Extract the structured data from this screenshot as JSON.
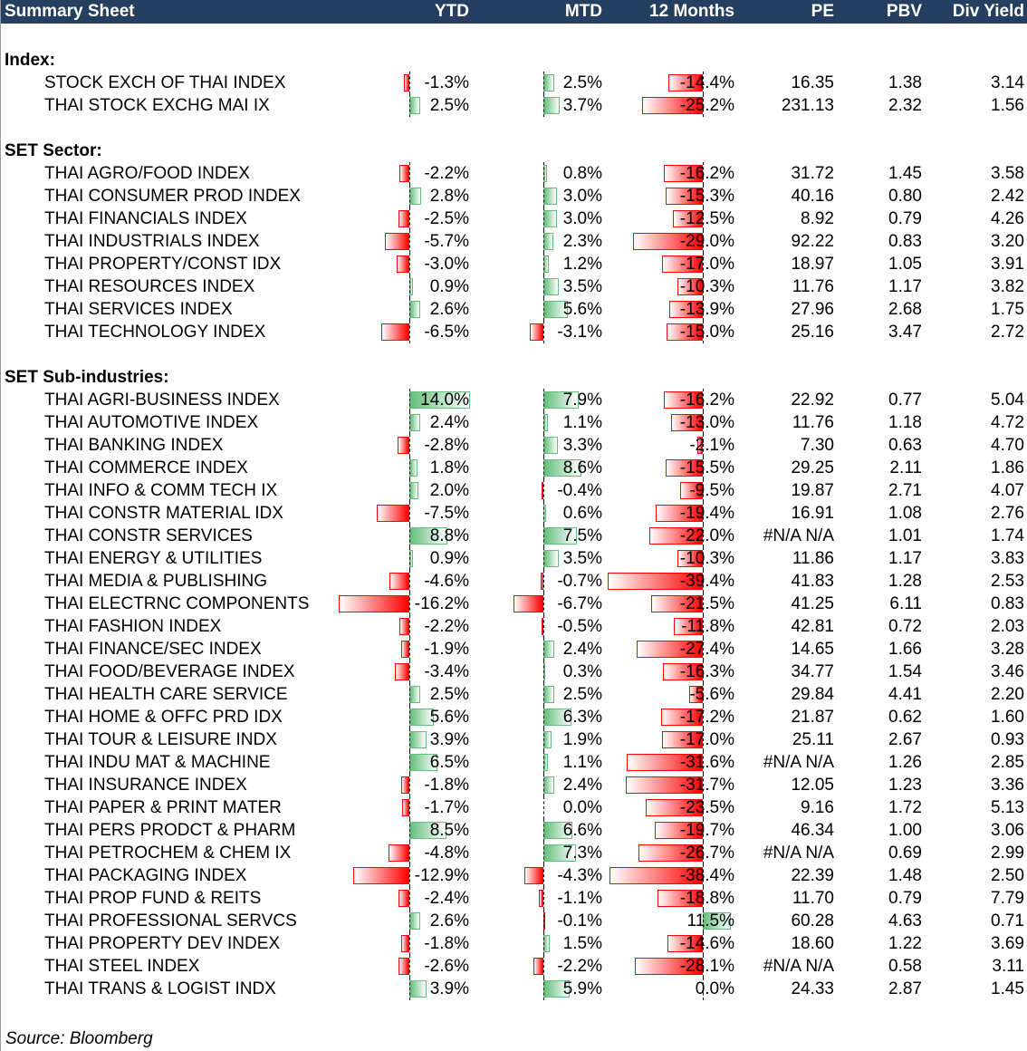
{
  "header": {
    "title": "Summary Sheet",
    "cols": [
      "YTD",
      "MTD",
      "12 Months",
      "PE",
      "PBV",
      "Div Yield"
    ]
  },
  "colors": {
    "header_bg": "#243f60",
    "neg": "#ff0000",
    "pos": "#63be7b"
  },
  "sections": [
    {
      "title": "Index:",
      "rows": [
        [
          "STOCK EXCH OF THAI INDEX",
          -1.3,
          2.5,
          -14.4,
          "16.35",
          "1.38",
          "3.14"
        ],
        [
          "THAI STOCK EXCHG MAI IX",
          2.5,
          3.7,
          -25.2,
          "231.13",
          "2.32",
          "1.56"
        ]
      ]
    },
    {
      "title": "SET Sector:",
      "rows": [
        [
          "THAI AGRO/FOOD INDEX",
          -2.2,
          0.8,
          -16.2,
          "31.72",
          "1.45",
          "3.58"
        ],
        [
          "THAI CONSUMER PROD INDEX",
          2.8,
          3.0,
          -15.3,
          "40.16",
          "0.80",
          "2.42"
        ],
        [
          "THAI FINANCIALS INDEX",
          -2.5,
          3.0,
          -12.5,
          "8.92",
          "0.79",
          "4.26"
        ],
        [
          "THAI INDUSTRIALS INDEX",
          -5.7,
          2.3,
          -29.0,
          "92.22",
          "0.83",
          "3.20"
        ],
        [
          "THAI PROPERTY/CONST IDX",
          -3.0,
          1.2,
          -17.0,
          "18.97",
          "1.05",
          "3.91"
        ],
        [
          "THAI RESOURCES INDEX",
          0.9,
          3.5,
          -10.3,
          "11.76",
          "1.17",
          "3.82"
        ],
        [
          "THAI SERVICES INDEX",
          2.6,
          5.6,
          -13.9,
          "27.96",
          "2.68",
          "1.75"
        ],
        [
          "THAI TECHNOLOGY INDEX",
          -6.5,
          -3.1,
          -15.0,
          "25.16",
          "3.47",
          "2.72"
        ]
      ]
    },
    {
      "title": "SET Sub-industries:",
      "rows": [
        [
          "THAI AGRI-BUSINESS INDEX",
          14.0,
          7.9,
          -16.2,
          "22.92",
          "0.77",
          "5.04"
        ],
        [
          "THAI AUTOMOTIVE INDEX",
          2.4,
          1.1,
          -13.0,
          "11.76",
          "1.18",
          "4.72"
        ],
        [
          "THAI BANKING INDEX",
          -2.8,
          3.3,
          -2.1,
          "7.30",
          "0.63",
          "4.70"
        ],
        [
          "THAI COMMERCE INDEX",
          1.8,
          8.6,
          -15.5,
          "29.25",
          "2.11",
          "1.86"
        ],
        [
          "THAI INFO & COMM TECH IX",
          2.0,
          -0.4,
          -9.5,
          "19.87",
          "2.71",
          "4.07"
        ],
        [
          "THAI CONSTR MATERIAL IDX",
          -7.5,
          0.6,
          -19.4,
          "16.91",
          "1.08",
          "2.76"
        ],
        [
          "THAI CONSTR SERVICES",
          8.8,
          7.5,
          -22.0,
          "#N/A N/A",
          "1.01",
          "1.74"
        ],
        [
          "THAI ENERGY & UTILITIES",
          0.9,
          3.5,
          -10.3,
          "11.86",
          "1.17",
          "3.83"
        ],
        [
          "THAI MEDIA & PUBLISHING",
          -4.6,
          -0.7,
          -39.4,
          "41.83",
          "1.28",
          "2.53"
        ],
        [
          "THAI ELECTRNC COMPONENTS",
          -16.2,
          -6.7,
          -21.5,
          "41.25",
          "6.11",
          "0.83"
        ],
        [
          "THAI FASHION INDEX",
          -2.2,
          -0.5,
          -11.8,
          "42.81",
          "0.72",
          "2.03"
        ],
        [
          "THAI FINANCE/SEC INDEX",
          -1.9,
          2.4,
          -27.4,
          "14.65",
          "1.66",
          "3.28"
        ],
        [
          "THAI FOOD/BEVERAGE INDEX",
          -3.4,
          0.3,
          -16.3,
          "34.77",
          "1.54",
          "3.46"
        ],
        [
          "THAI HEALTH CARE SERVICE",
          2.5,
          2.5,
          -5.6,
          "29.84",
          "4.41",
          "2.20"
        ],
        [
          "THAI HOME & OFFC PRD IDX",
          5.6,
          6.3,
          -17.2,
          "21.87",
          "0.62",
          "1.60"
        ],
        [
          "THAI TOUR & LEISURE INDX",
          3.9,
          1.9,
          -17.0,
          "25.11",
          "2.67",
          "0.93"
        ],
        [
          "THAI INDU MAT & MACHINE",
          6.5,
          1.1,
          -31.6,
          "#N/A N/A",
          "1.26",
          "2.85"
        ],
        [
          "THAI INSURANCE INDEX",
          -1.8,
          2.4,
          -31.7,
          "12.05",
          "1.23",
          "3.36"
        ],
        [
          "THAI PAPER & PRINT MATER",
          -1.7,
          0.0,
          -23.5,
          "9.16",
          "1.72",
          "5.13"
        ],
        [
          "THAI PERS PRODCT & PHARM",
          8.5,
          6.6,
          -19.7,
          "46.34",
          "1.00",
          "3.06"
        ],
        [
          "THAI PETROCHEM & CHEM IX",
          -4.8,
          7.3,
          -26.7,
          "#N/A N/A",
          "0.69",
          "2.99"
        ],
        [
          "THAI PACKAGING INDEX",
          -12.9,
          -4.3,
          -38.4,
          "22.39",
          "1.48",
          "2.50"
        ],
        [
          "THAI PROP FUND & REITS",
          -2.4,
          -1.1,
          -18.8,
          "11.70",
          "0.79",
          "7.79"
        ],
        [
          "THAI PROFESSIONAL SERVCS",
          2.6,
          -0.1,
          11.5,
          "60.28",
          "4.63",
          "0.71"
        ],
        [
          "THAI PROPERTY DEV INDEX",
          -1.8,
          1.5,
          -14.6,
          "18.60",
          "1.22",
          "3.69"
        ],
        [
          "THAI STEEL INDEX",
          -2.6,
          -2.2,
          -28.1,
          "#N/A N/A",
          "0.58",
          "3.11"
        ],
        [
          "THAI TRANS & LOGIST INDX",
          3.9,
          5.9,
          0.0,
          "24.33",
          "2.87",
          "1.45"
        ]
      ]
    }
  ],
  "source": "Source: Bloomberg"
}
